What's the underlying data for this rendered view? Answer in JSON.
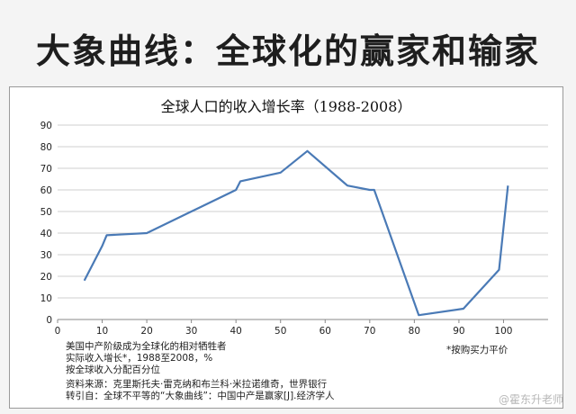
{
  "slide": {
    "title": "大象曲线：全球化的赢家和输家"
  },
  "chart_data": {
    "type": "line",
    "title": "全球人口的收入增长率（1988-2008）",
    "xlabel": "",
    "ylabel": "",
    "xlim": [
      0,
      110
    ],
    "ylim": [
      0,
      90
    ],
    "x_ticks": [
      0,
      10,
      20,
      30,
      40,
      50,
      60,
      70,
      80,
      90,
      100
    ],
    "y_ticks": [
      0,
      10,
      20,
      30,
      40,
      50,
      60,
      70,
      80,
      90
    ],
    "grid": "horizontal",
    "color": "#4a7ab6",
    "series": [
      {
        "x": [
          6,
          10,
          11,
          20,
          30,
          32,
          40,
          41,
          50,
          56,
          65,
          70,
          71,
          81,
          91,
          99,
          101
        ],
        "y": [
          18,
          34,
          39,
          40,
          50,
          52,
          60,
          64,
          68,
          78,
          62,
          60,
          60,
          2,
          5,
          23,
          62
        ]
      }
    ]
  },
  "notes": {
    "line1": "美国中产阶级成为全球化的相对牺牲者",
    "line2": "实际收入增长*，1988至2008，%",
    "line3": "按全球收入分配百分位",
    "asterisk": "*按购买力平价",
    "source1": "资料来源：克里斯托夫·雷克纳和布兰科·米拉诺维奇，世界银行",
    "source2": "转引自：全球不平等的“大象曲线”：中国中产是赢家[J].经济学人"
  },
  "watermark": "@霍东升老师"
}
